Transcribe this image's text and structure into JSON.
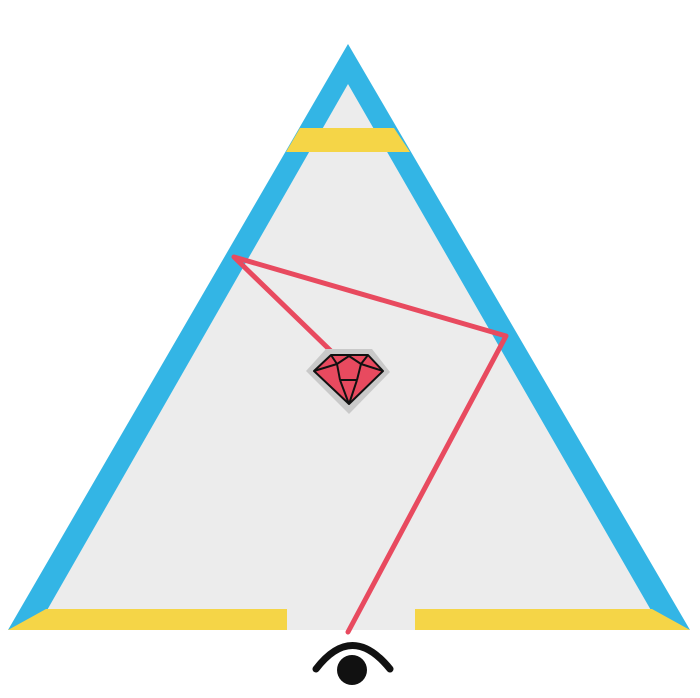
{
  "colors": {
    "background": "#ffffff",
    "interior": "#ececec",
    "mirror_wall": "#33b5e5",
    "opening": "#f5d547",
    "light_ray": "#e84a5f",
    "gem_fill": "#e84a5f",
    "gem_halo": "#c9c9c9",
    "gem_facets": "#111111",
    "eye": "#111111"
  },
  "icons": {
    "gem": "gem-icon",
    "eye": "eye-icon"
  }
}
